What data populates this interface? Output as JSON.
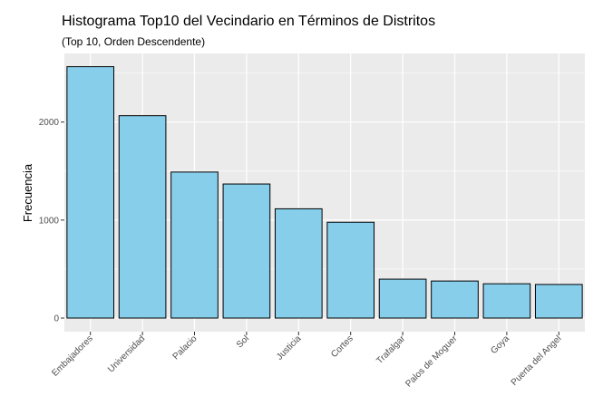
{
  "chart_data": {
    "type": "bar",
    "title": "Histograma Top10 del Vecindario en Términos de Distritos",
    "subtitle": "(Top 10, Orden Descendente)",
    "xlabel": "",
    "ylabel": "Frecuencia",
    "categories": [
      "Embajadores",
      "Universidad",
      "Palacio",
      "Sol",
      "Justicia",
      "Cortes",
      "Trafalgar",
      "Palos de Moguer",
      "Goya",
      "Puerta del Angel"
    ],
    "values": [
      2565,
      2065,
      1490,
      1368,
      1115,
      978,
      397,
      378,
      350,
      343
    ],
    "yticks": [
      0,
      1000,
      2000
    ],
    "ylim": [
      0,
      2700
    ],
    "colors": {
      "bar_fill": "#87CEEB",
      "bar_stroke": "#000000",
      "panel_bg": "#EBEBEB",
      "grid": "#FFFFFF"
    },
    "grid": true
  }
}
